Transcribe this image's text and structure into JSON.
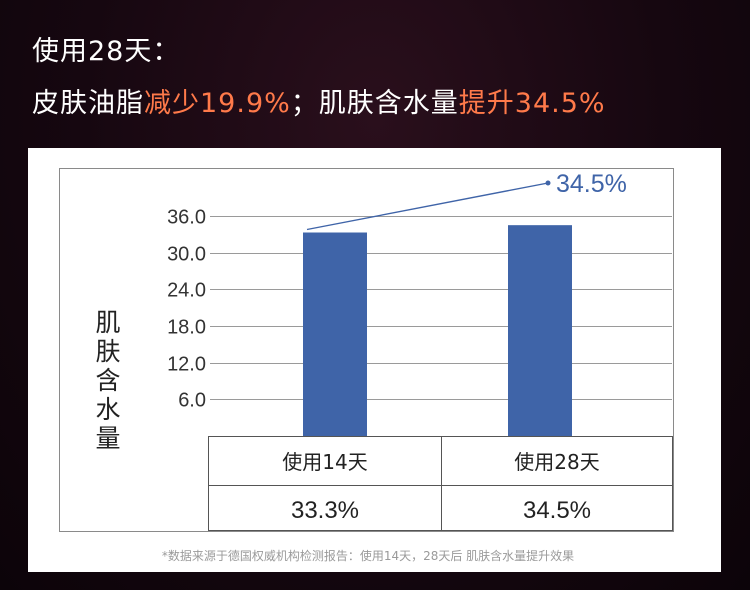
{
  "header": {
    "line1": "使用28天：",
    "line2_part1": "皮肤油脂",
    "line2_part2": "减少19.9%",
    "line2_part3": "；肌肤含水量",
    "line2_part4": "提升34.5%"
  },
  "colors": {
    "accent": "#ff7a4a",
    "bar": "#3f64a8",
    "trend_line": "#3f64a8"
  },
  "chart_data": {
    "type": "bar",
    "title": "",
    "ylabel": "肌肤含水量",
    "xlabel": "",
    "ylim": [
      0,
      36
    ],
    "y_ticks": [
      "36.0",
      "30.0",
      "24.0",
      "18.0",
      "12.0",
      "6.0"
    ],
    "y_tick_values": [
      36,
      30,
      24,
      18,
      12,
      6
    ],
    "grid": true,
    "categories": [
      "使用14天",
      "使用28天"
    ],
    "values": [
      33.3,
      34.5
    ],
    "value_labels": [
      "33.3%",
      "34.5%"
    ],
    "annotation": "34.5%"
  },
  "footnote": "*数据来源于德国权威机构检测报告：使用14天，28天后 肌肤含水量提升效果"
}
